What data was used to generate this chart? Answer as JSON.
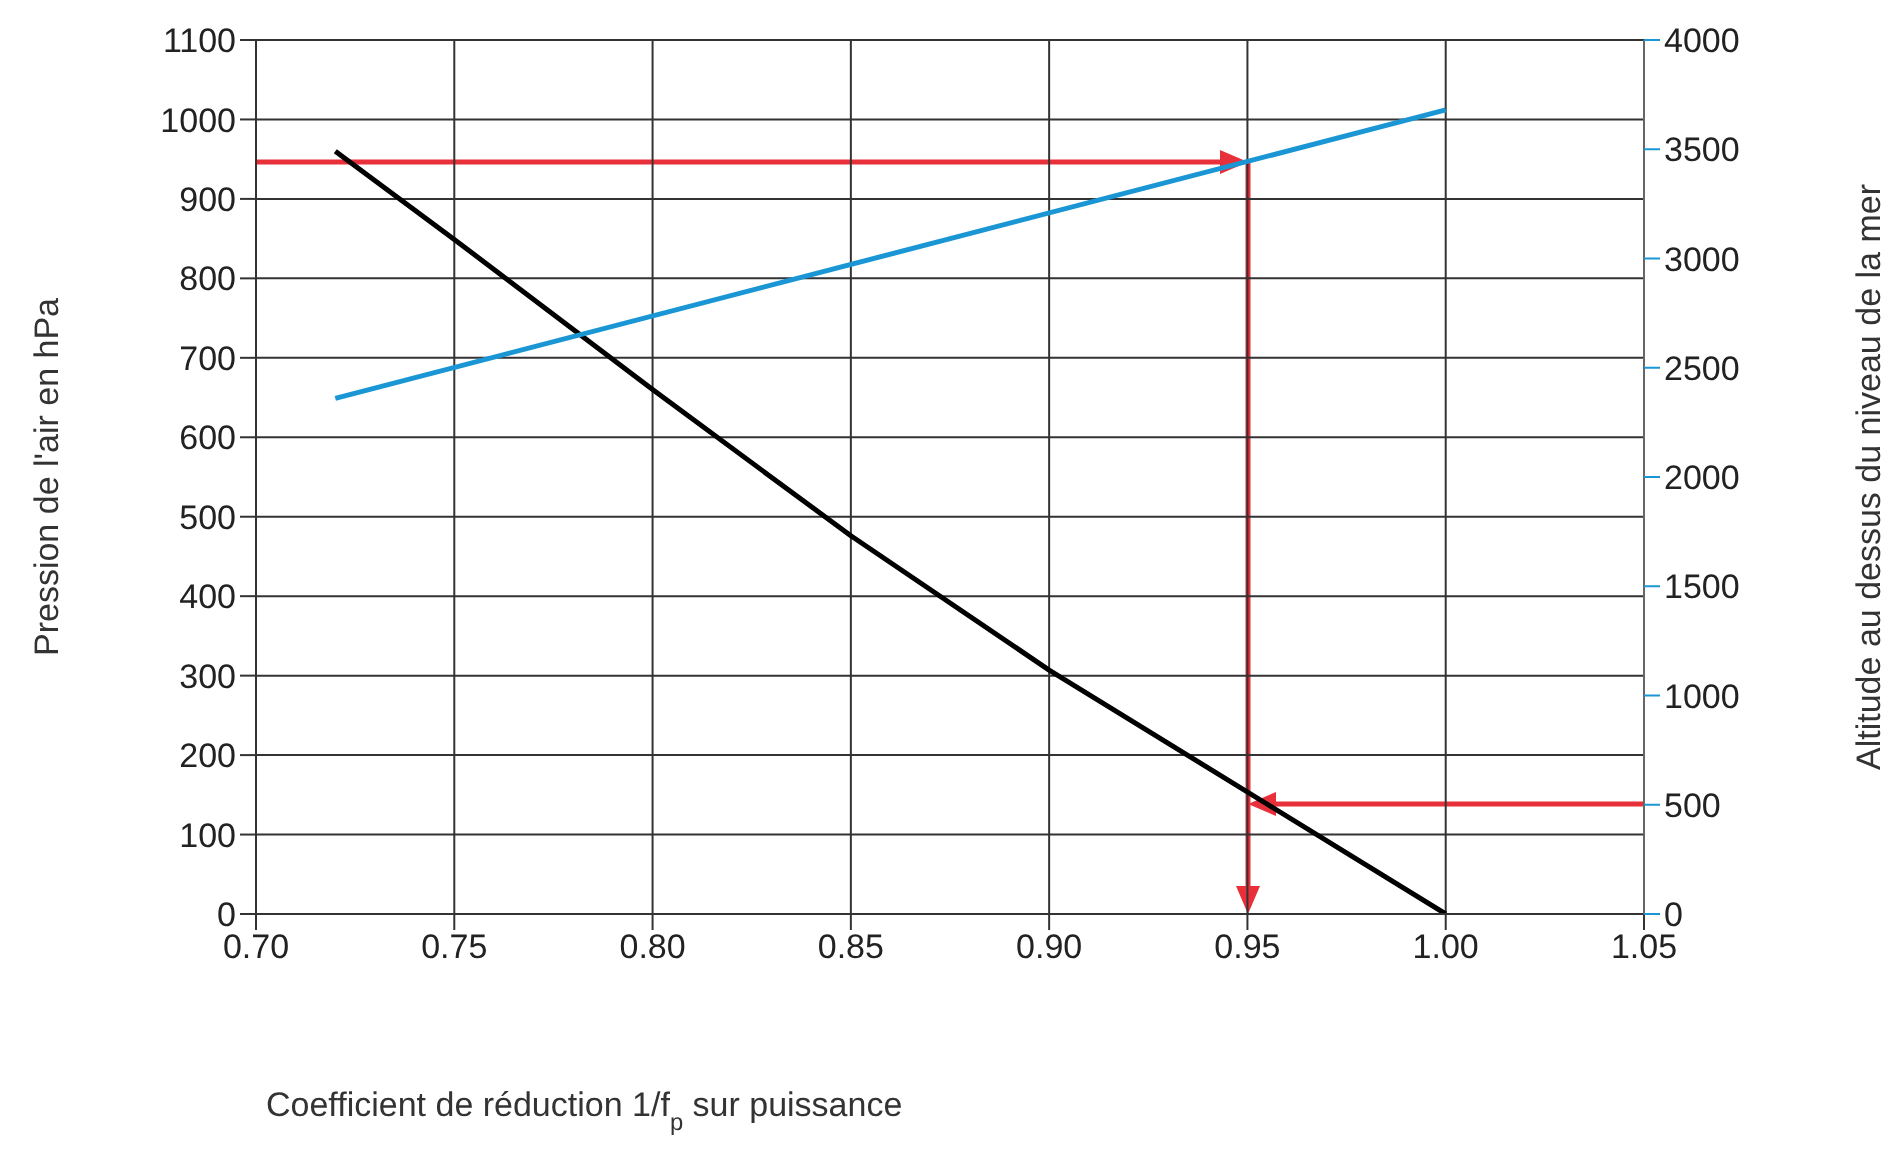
{
  "chart_data": {
    "type": "line",
    "xlabel": "Coefficient de réduction 1/f$_{p}$ sur puissance",
    "ylabel": "Pression de l'air en hPa",
    "y2label": "Altitude au dessus du niveau de la mer",
    "xlim": [
      0.7,
      1.05
    ],
    "xticks": [
      {
        "value": 0.7,
        "label": "0.70"
      },
      {
        "value": 0.75,
        "label": "0.75"
      },
      {
        "value": 0.8,
        "label": "0.80"
      },
      {
        "value": 0.85,
        "label": "0.85"
      },
      {
        "value": 0.9,
        "label": "0.90"
      },
      {
        "value": 0.95,
        "label": "0.95"
      },
      {
        "value": 1.0,
        "label": "1.00"
      },
      {
        "value": 1.05,
        "label": "1.05"
      }
    ],
    "ylim": [
      0,
      1100
    ],
    "yticks": [
      0,
      100,
      200,
      300,
      400,
      500,
      600,
      700,
      800,
      900,
      1000,
      1100
    ],
    "y2lim": [
      0,
      4000
    ],
    "y2ticks": [
      0,
      500,
      1000,
      1500,
      2000,
      2500,
      3000,
      3500,
      4000
    ],
    "grid": true,
    "series": [
      {
        "color": "#000000",
        "x": [
          0.72,
          0.75,
          0.8,
          0.85,
          0.9,
          1.0
        ],
        "values": [
          960,
          849,
          660,
          476,
          307,
          0
        ]
      },
      {
        "color": "#1a96d4",
        "axis": "y2",
        "x": [
          0.72,
          1.0
        ],
        "values": [
          2360,
          3680
        ]
      }
    ]
  }
}
